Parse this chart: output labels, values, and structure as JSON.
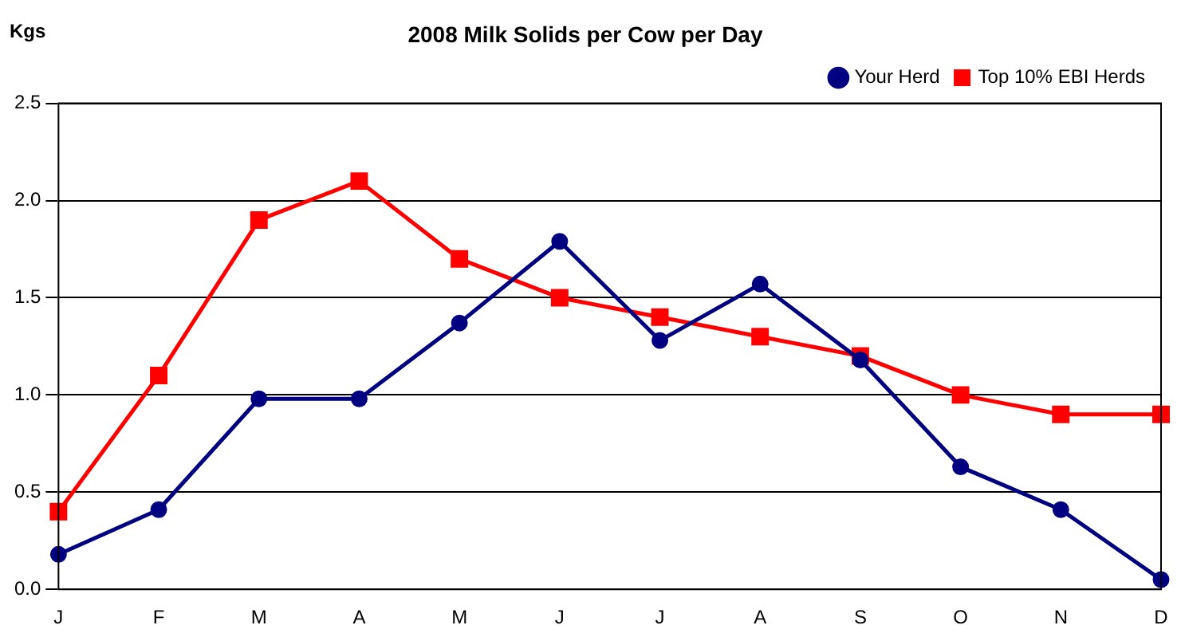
{
  "chart_data": {
    "type": "line",
    "title": "2008 Milk Solids per Cow per Day",
    "ylabel": "Kgs",
    "categories": [
      "J",
      "F",
      "M",
      "A",
      "M",
      "J",
      "J",
      "A",
      "S",
      "O",
      "N",
      "D"
    ],
    "series": [
      {
        "name": "Your Herd",
        "color": "#000080",
        "marker": "circle",
        "values": [
          0.18,
          0.41,
          0.98,
          0.98,
          1.37,
          1.79,
          1.28,
          1.57,
          1.18,
          0.63,
          0.41,
          0.05
        ]
      },
      {
        "name": "Top 10% EBI Herds",
        "color": "#ff0000",
        "marker": "square",
        "values": [
          0.4,
          1.1,
          1.9,
          2.1,
          1.7,
          1.5,
          1.4,
          1.3,
          1.2,
          1.0,
          0.9,
          0.9
        ]
      }
    ],
    "ylim": [
      0,
      2.5
    ],
    "yticks": [
      {
        "value": 0,
        "label": "0.0"
      },
      0.5,
      {
        "value": 1,
        "label": "1.0"
      },
      1.5,
      {
        "value": 2,
        "label": "2.0"
      },
      2.5
    ],
    "grid": "y",
    "legend": "top right"
  }
}
